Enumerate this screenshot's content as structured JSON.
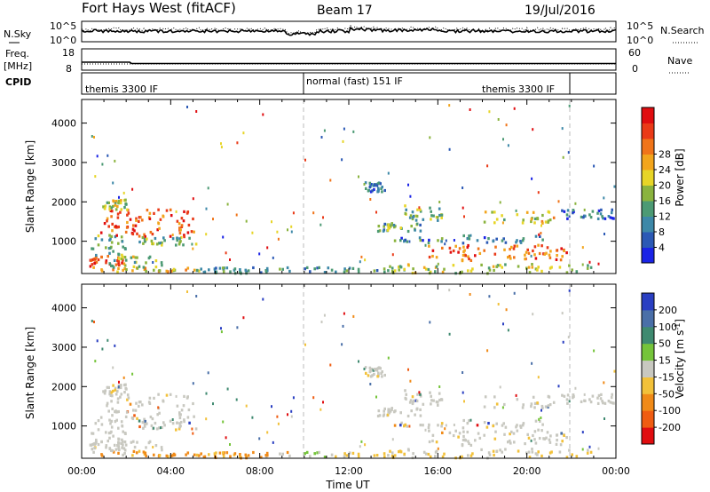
{
  "header": {
    "title": "Fort Hays West (fitACF)",
    "beam": "Beam 17",
    "date": "19/Jul/2016"
  },
  "noise_panel": {
    "left_label": "N.Sky",
    "left_ticks": [
      "10^5",
      "10^0"
    ],
    "right_label": "N.Search",
    "right_ticks": [
      "10^5",
      "10^0"
    ]
  },
  "freq_panel": {
    "left_label_1": "Freq.",
    "left_label_2": "[MHz]",
    "left_ticks": [
      "18",
      "8"
    ],
    "right_label": "Nave",
    "right_ticks": [
      "60",
      "0"
    ]
  },
  "cpid_panel": {
    "label": "CPID",
    "segments": [
      {
        "text": "themis 3300 IF",
        "start_hour": 0
      },
      {
        "text": "normal (fast) 151 IF",
        "start_hour": 10
      },
      {
        "text": "themis 3300 IF",
        "start_hour": 22
      }
    ]
  },
  "chart_data": [
    {
      "type": "heatmap",
      "name": "power",
      "xlabel": "",
      "ylabel": "Slant Range [km]",
      "xlim": [
        0,
        24
      ],
      "ylim": [
        180,
        4600
      ],
      "y_ticks": [
        1000,
        2000,
        3000,
        4000
      ],
      "colorbar_label": "Power [dB]",
      "colorbar_ticks": [
        "4",
        "8",
        "12",
        "16",
        "20",
        "24",
        "28"
      ],
      "colorbar_colors": [
        "#1a23e6",
        "#2b59b5",
        "#3d88a8",
        "#4c9a74",
        "#8ab33e",
        "#e7d527",
        "#f2a51c",
        "#f07419",
        "#ea3a18",
        "#e00d10"
      ],
      "colorbar_range": [
        0,
        30
      ],
      "features": [
        {
          "t0": 0.3,
          "t1": 5.3,
          "r0": 200,
          "r1": 330,
          "level": 0.58
        },
        {
          "t0": 0.3,
          "t1": 1.8,
          "r0": 330,
          "r1": 620,
          "level": 0.85
        },
        {
          "t0": 1.2,
          "t1": 3.6,
          "r0": 330,
          "r1": 640,
          "level": 0.45
        },
        {
          "t0": 0.4,
          "t1": 2.0,
          "r0": 620,
          "r1": 1150,
          "level": 0.35
        },
        {
          "t0": 0.8,
          "t1": 5.0,
          "r0": 1100,
          "r1": 1800,
          "level": 0.82
        },
        {
          "t0": 0.9,
          "t1": 2.0,
          "r0": 1800,
          "r1": 2050,
          "level": 0.5
        },
        {
          "t0": 2.5,
          "t1": 5.1,
          "r0": 900,
          "r1": 1100,
          "level": 0.4
        },
        {
          "t0": 5.0,
          "t1": 7.5,
          "r0": 180,
          "r1": 330,
          "level": 0.28
        },
        {
          "t0": 7.5,
          "t1": 14.0,
          "r0": 180,
          "r1": 330,
          "level": 0.3
        },
        {
          "t0": 12.7,
          "t1": 13.6,
          "r0": 2250,
          "r1": 2500,
          "level": 0.22
        },
        {
          "t0": 13.2,
          "t1": 15.2,
          "r0": 1250,
          "r1": 1450,
          "level": 0.35
        },
        {
          "t0": 14.4,
          "t1": 16.2,
          "r0": 1500,
          "r1": 1900,
          "level": 0.4
        },
        {
          "t0": 14.0,
          "t1": 21.0,
          "r0": 950,
          "r1": 1150,
          "level": 0.25
        },
        {
          "t0": 15.5,
          "t1": 21.8,
          "r0": 500,
          "r1": 900,
          "level": 0.78
        },
        {
          "t0": 18.0,
          "t1": 21.4,
          "r0": 1450,
          "r1": 1750,
          "level": 0.55
        },
        {
          "t0": 21.4,
          "t1": 23.9,
          "r0": 1550,
          "r1": 1800,
          "level": 0.2
        },
        {
          "t0": 13.0,
          "t1": 23.0,
          "r0": 180,
          "r1": 420,
          "level": 0.5
        }
      ]
    },
    {
      "type": "heatmap",
      "name": "velocity",
      "xlabel": "Time UT",
      "ylabel": "Slant Range [km]",
      "xlim": [
        0,
        24
      ],
      "ylim": [
        180,
        4600
      ],
      "x_ticks": [
        "00:00",
        "04:00",
        "08:00",
        "12:00",
        "16:00",
        "20:00",
        "00:00"
      ],
      "y_ticks": [
        1000,
        2000,
        3000,
        4000
      ],
      "colorbar_label": "Velocity [m s^-1]",
      "colorbar_ticks": [
        "200",
        "100",
        "50",
        "15",
        "-15",
        "-50",
        "-100",
        "-200"
      ],
      "colorbar_colors": [
        "#2a3fc2",
        "#4a6fa8",
        "#3f8a70",
        "#75c43a",
        "#c8c8c0",
        "#f2c13a",
        "#f08a18",
        "#ef5c12",
        "#e00d10"
      ],
      "colorbar_range": [
        -250,
        250
      ]
    }
  ]
}
